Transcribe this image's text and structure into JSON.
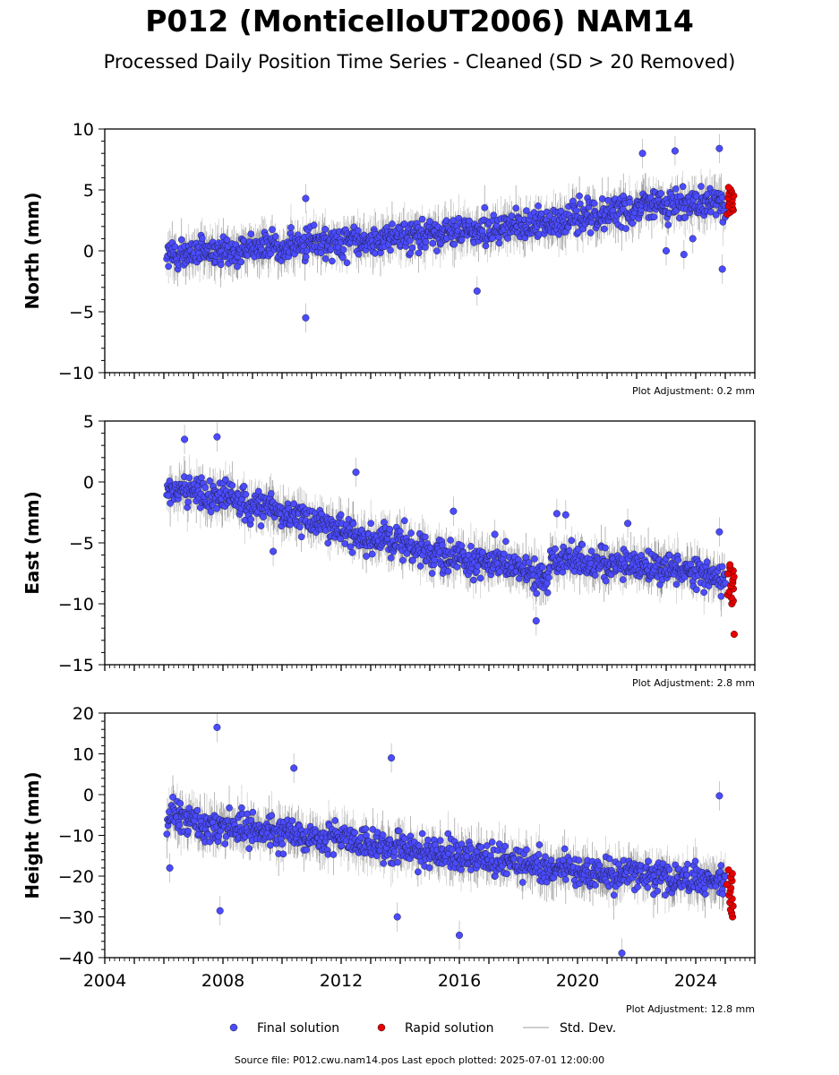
{
  "title": "P012 (MonticelloUT2006) NAM14",
  "subtitle": "Processed Daily Position Time Series - Cleaned (SD > 20 Removed)",
  "source_text": "Source file: P012.cwu.nam14.pos  Last epoch plotted: 2025-07-01 12:00:00",
  "legend": {
    "final": "Final solution",
    "rapid": "Rapid solution",
    "std": "Std. Dev."
  },
  "colors": {
    "final": "#4b4bff",
    "rapid": "#e60000",
    "std": "#bdbdbd",
    "std_dark": "#4a4a4a"
  },
  "chart_data": [
    {
      "type": "scatter",
      "ylabel": "North (mm)",
      "xlim": [
        2004,
        2026
      ],
      "ylim": [
        -10,
        10
      ],
      "yticks": [
        -10,
        -5,
        0,
        5,
        10
      ],
      "xtick_labels": [],
      "grid": false,
      "adjustment": "Plot Adjustment: 0.2 mm",
      "trend": [
        [
          2006.1,
          -0.4
        ],
        [
          2010,
          0.4
        ],
        [
          2014,
          1.1
        ],
        [
          2018,
          2.0
        ],
        [
          2020,
          2.7
        ],
        [
          2022,
          3.6
        ],
        [
          2025.0,
          4.0
        ]
      ],
      "outliers": [
        [
          2010.8,
          4.3
        ],
        [
          2010.8,
          -5.5
        ],
        [
          2022.2,
          8.0
        ],
        [
          2023.3,
          8.2
        ],
        [
          2024.8,
          8.4
        ],
        [
          2024.9,
          -1.5
        ],
        [
          2016.6,
          -3.3
        ],
        [
          2023.6,
          -0.3
        ],
        [
          2023.0,
          0.0
        ],
        [
          2023.9,
          1.0
        ]
      ],
      "rapid": {
        "x_start": 2025.05,
        "x_end": 2025.3,
        "y_min": 3.0,
        "y_max": 5.2
      }
    },
    {
      "type": "scatter",
      "ylabel": "East (mm)",
      "xlim": [
        2004,
        2026
      ],
      "ylim": [
        -15,
        5
      ],
      "yticks": [
        -15,
        -10,
        -5,
        0,
        5
      ],
      "xtick_labels": [],
      "grid": false,
      "adjustment": "Plot Adjustment: 2.8 mm",
      "trend": [
        [
          2006.1,
          -0.6
        ],
        [
          2008,
          -1.2
        ],
        [
          2010,
          -2.6
        ],
        [
          2012,
          -4.0
        ],
        [
          2014,
          -5.0
        ],
        [
          2016,
          -6.2
        ],
        [
          2018,
          -7.2
        ],
        [
          2019.0,
          -7.9
        ],
        [
          2019.1,
          -6.2
        ],
        [
          2022,
          -6.8
        ],
        [
          2025.0,
          -7.8
        ]
      ],
      "outliers": [
        [
          2006.7,
          3.5
        ],
        [
          2007.8,
          3.7
        ],
        [
          2012.5,
          0.8
        ],
        [
          2015.8,
          -2.4
        ],
        [
          2018.6,
          -11.4
        ],
        [
          2024.8,
          -4.1
        ],
        [
          2009.7,
          -5.7
        ],
        [
          2017.2,
          -4.3
        ],
        [
          2019.3,
          -2.6
        ],
        [
          2019.6,
          -2.7
        ],
        [
          2021.7,
          -3.4
        ]
      ],
      "rapid": {
        "x_start": 2025.05,
        "x_end": 2025.3,
        "y_min": -10.0,
        "y_max": -6.8,
        "extra": [
          [
            2025.3,
            -12.5
          ]
        ]
      }
    },
    {
      "type": "scatter",
      "ylabel": "Height (mm)",
      "xlim": [
        2004,
        2026
      ],
      "ylim": [
        -40,
        20
      ],
      "yticks": [
        -40,
        -30,
        -20,
        -10,
        0,
        10,
        20
      ],
      "xticks": [
        2004,
        2008,
        2012,
        2016,
        2020,
        2024
      ],
      "xtick_labels": [
        "2004",
        "2008",
        "2012",
        "2016",
        "2020",
        "2024"
      ],
      "grid": false,
      "adjustment": "Plot Adjustment: 12.8 mm",
      "trend": [
        [
          2006.1,
          -5.0
        ],
        [
          2008,
          -8.0
        ],
        [
          2012,
          -11.0
        ],
        [
          2016,
          -15.0
        ],
        [
          2020,
          -19.0
        ],
        [
          2025.0,
          -21.0
        ]
      ],
      "outliers": [
        [
          2007.8,
          16.5
        ],
        [
          2010.4,
          6.5
        ],
        [
          2013.7,
          9.0
        ],
        [
          2021.5,
          -38.9
        ],
        [
          2024.8,
          -0.3
        ],
        [
          2013.9,
          -30.0
        ],
        [
          2007.9,
          -28.5
        ],
        [
          2016.0,
          -34.5
        ],
        [
          2006.2,
          -18.0
        ]
      ],
      "rapid": {
        "x_start": 2025.05,
        "x_end": 2025.3,
        "y_min": -30.0,
        "y_max": -18.5
      }
    }
  ]
}
